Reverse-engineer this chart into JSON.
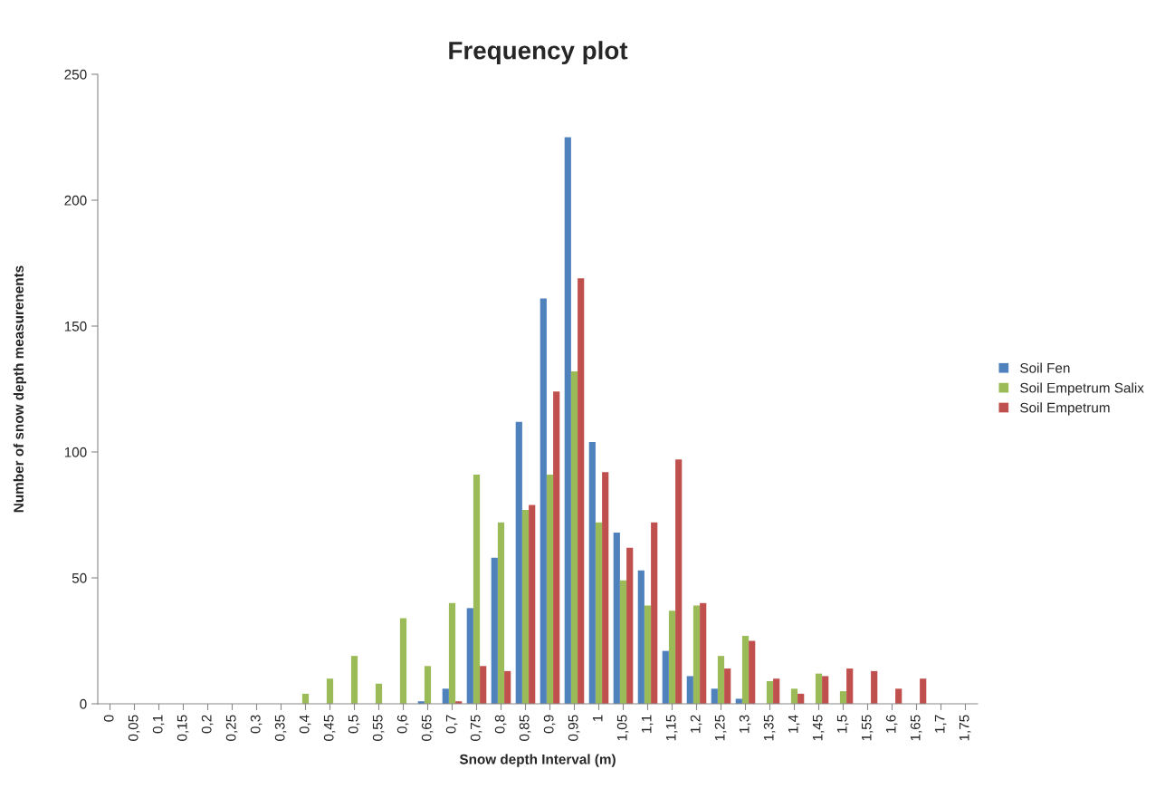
{
  "chart_data": {
    "type": "bar",
    "title": "Frequency plot",
    "xlabel": "Snow depth Interval (m)",
    "ylabel": "Number of snow depth measurenents",
    "categories": [
      "0",
      "0,05",
      "0,1",
      "0,15",
      "0,2",
      "0,25",
      "0,3",
      "0,35",
      "0,4",
      "0,45",
      "0,5",
      "0,55",
      "0,6",
      "0,65",
      "0,7",
      "0,75",
      "0,8",
      "0,85",
      "0,9",
      "0,95",
      "1",
      "1,05",
      "1,1",
      "1,15",
      "1,2",
      "1,25",
      "1,3",
      "1,35",
      "1,4",
      "1,45",
      "1,5",
      "1,55",
      "1,6",
      "1,65",
      "1,7",
      "1,75"
    ],
    "series": [
      {
        "name": "Soil Fen",
        "color": "#4f81bd",
        "values": [
          0,
          0,
          0,
          0,
          0,
          0,
          0,
          0,
          0,
          0,
          0,
          0,
          0,
          1,
          6,
          38,
          58,
          112,
          161,
          225,
          104,
          68,
          53,
          21,
          11,
          6,
          2,
          0,
          0,
          0,
          0,
          0,
          0,
          0,
          0,
          0
        ]
      },
      {
        "name": "Soil Empetrum Salix",
        "color": "#9bbb59",
        "values": [
          0,
          0,
          0,
          0,
          0,
          0,
          0,
          0,
          4,
          10,
          19,
          8,
          34,
          15,
          40,
          91,
          72,
          77,
          91,
          132,
          72,
          49,
          39,
          37,
          39,
          19,
          27,
          9,
          6,
          12,
          5,
          0,
          0,
          0,
          0,
          0
        ]
      },
      {
        "name": "Soil Empetrum",
        "color": "#c0504d",
        "values": [
          0,
          0,
          0,
          0,
          0,
          0,
          0,
          0,
          0,
          0,
          0,
          0,
          0,
          0,
          1,
          15,
          13,
          79,
          124,
          169,
          92,
          62,
          72,
          97,
          40,
          14,
          25,
          10,
          4,
          11,
          14,
          13,
          6,
          10,
          0,
          0
        ]
      }
    ],
    "ylim": [
      0,
      250
    ],
    "yticks": [
      0,
      50,
      100,
      150,
      200,
      250
    ],
    "grid": false,
    "legend": "right"
  }
}
